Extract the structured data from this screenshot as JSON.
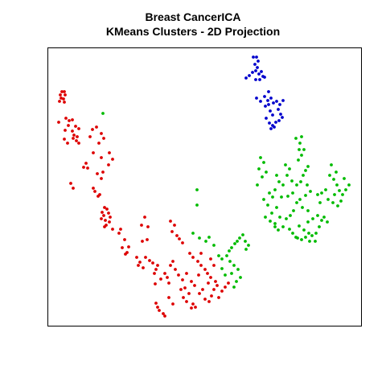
{
  "chart_data": {
    "type": "scatter",
    "title": "Breast CancerICA",
    "subtitle": "KMeans Clusters - 2D Projection",
    "xlabel": "",
    "ylabel": "",
    "grid": false,
    "axes_ticks": false,
    "series": [
      {
        "color": "#dd0000",
        "points": [
          [
            77,
            114
          ],
          [
            80,
            114
          ],
          [
            75,
            118
          ],
          [
            81,
            118
          ],
          [
            76,
            122
          ],
          [
            79,
            123
          ],
          [
            74,
            126
          ],
          [
            80,
            127
          ],
          [
            73,
            152
          ],
          [
            82,
            147
          ],
          [
            86,
            150
          ],
          [
            90,
            149
          ],
          [
            85,
            156
          ],
          [
            94,
            157
          ],
          [
            98,
            160
          ],
          [
            81,
            162
          ],
          [
            90,
            163
          ],
          [
            92,
            168
          ],
          [
            96,
            170
          ],
          [
            91,
            172
          ],
          [
            95,
            175
          ],
          [
            98,
            178
          ],
          [
            80,
            173
          ],
          [
            84,
            178
          ],
          [
            115,
            161
          ],
          [
            120,
            158
          ],
          [
            126,
            166
          ],
          [
            129,
            172
          ],
          [
            123,
            178
          ],
          [
            112,
            170
          ],
          [
            136,
            190
          ],
          [
            140,
            198
          ],
          [
            135,
            205
          ],
          [
            126,
            196
          ],
          [
            116,
            190
          ],
          [
            107,
            203
          ],
          [
            109,
            209
          ],
          [
            104,
            208
          ],
          [
            121,
            216
          ],
          [
            128,
            214
          ],
          [
            126,
            222
          ],
          [
            88,
            228
          ],
          [
            91,
            234
          ],
          [
            116,
            234
          ],
          [
            118,
            238
          ],
          [
            122,
            244
          ],
          [
            124,
            242
          ],
          [
            130,
            258
          ],
          [
            133,
            260
          ],
          [
            127,
            264
          ],
          [
            135,
            265
          ],
          [
            129,
            268
          ],
          [
            137,
            270
          ],
          [
            131,
            274
          ],
          [
            126,
            272
          ],
          [
            136,
            276
          ],
          [
            132,
            280
          ],
          [
            130,
            282
          ],
          [
            140,
            285
          ],
          [
            150,
            285
          ],
          [
            148,
            290
          ],
          [
            155,
            298
          ],
          [
            160,
            307
          ],
          [
            152,
            308
          ],
          [
            158,
            314
          ],
          [
            156,
            316
          ],
          [
            180,
            270
          ],
          [
            176,
            280
          ],
          [
            184,
            282
          ],
          [
            177,
            300
          ],
          [
            183,
            298
          ],
          [
            212,
            275
          ],
          [
            217,
            280
          ],
          [
            214,
            288
          ],
          [
            220,
            293
          ],
          [
            223,
            297
          ],
          [
            227,
            302
          ],
          [
            170,
            320
          ],
          [
            174,
            326
          ],
          [
            172,
            330
          ],
          [
            178,
            333
          ],
          [
            181,
            320
          ],
          [
            186,
            324
          ],
          [
            190,
            327
          ],
          [
            194,
            335
          ],
          [
            196,
            330
          ],
          [
            192,
            340
          ],
          [
            200,
            347
          ],
          [
            205,
            340
          ],
          [
            208,
            345
          ],
          [
            210,
            352
          ],
          [
            212,
            330
          ],
          [
            215,
            325
          ],
          [
            218,
            335
          ],
          [
            222,
            342
          ],
          [
            227,
            348
          ],
          [
            232,
            340
          ],
          [
            238,
            350
          ],
          [
            242,
            355
          ],
          [
            230,
            358
          ],
          [
            235,
            365
          ],
          [
            228,
            370
          ],
          [
            232,
            375
          ],
          [
            240,
            378
          ],
          [
            243,
            382
          ],
          [
            238,
            383
          ],
          [
            248,
            365
          ],
          [
            252,
            360
          ],
          [
            255,
            372
          ],
          [
            260,
            375
          ],
          [
            263,
            368
          ],
          [
            266,
            360
          ],
          [
            270,
            355
          ],
          [
            268,
            350
          ],
          [
            272,
            370
          ],
          [
            276,
            362
          ],
          [
            280,
            357
          ],
          [
            284,
            352
          ],
          [
            262,
            345
          ],
          [
            258,
            340
          ],
          [
            255,
            335
          ],
          [
            250,
            330
          ],
          [
            246,
            325
          ],
          [
            240,
            320
          ],
          [
            236,
            315
          ],
          [
            250,
            315
          ],
          [
            262,
            322
          ],
          [
            266,
            330
          ],
          [
            194,
            377
          ],
          [
            196,
            382
          ],
          [
            198,
            386
          ],
          [
            203,
            390
          ],
          [
            205,
            393
          ],
          [
            193,
            353
          ],
          [
            225,
            360
          ],
          [
            210,
            370
          ],
          [
            215,
            378
          ],
          [
            247,
            342
          ],
          [
            259,
            352
          ]
        ]
      },
      {
        "color": "#00bb00",
        "points": [
          [
            128,
            141
          ],
          [
            245,
            236
          ],
          [
            245,
            255
          ],
          [
            240,
            290
          ],
          [
            248,
            296
          ],
          [
            256,
            300
          ],
          [
            260,
            295
          ],
          [
            266,
            305
          ],
          [
            272,
            318
          ],
          [
            276,
            322
          ],
          [
            282,
            318
          ],
          [
            285,
            312
          ],
          [
            288,
            308
          ],
          [
            292,
            303
          ],
          [
            295,
            300
          ],
          [
            298,
            296
          ],
          [
            302,
            292
          ],
          [
            305,
            300
          ],
          [
            309,
            305
          ],
          [
            306,
            310
          ],
          [
            286,
            325
          ],
          [
            291,
            330
          ],
          [
            288,
            340
          ],
          [
            296,
            335
          ],
          [
            299,
            345
          ],
          [
            294,
            350
          ],
          [
            276,
            334
          ],
          [
            280,
            342
          ],
          [
            291,
            357
          ],
          [
            324,
            196
          ],
          [
            328,
            202
          ],
          [
            322,
            210
          ],
          [
            331,
            214
          ],
          [
            326,
            220
          ],
          [
            320,
            230
          ],
          [
            335,
            240
          ],
          [
            342,
            236
          ],
          [
            339,
            245
          ],
          [
            328,
            248
          ],
          [
            333,
            255
          ],
          [
            344,
            258
          ],
          [
            338,
            265
          ],
          [
            348,
            270
          ],
          [
            342,
            278
          ],
          [
            352,
            282
          ],
          [
            346,
            286
          ],
          [
            336,
            275
          ],
          [
            330,
            270
          ],
          [
            355,
            205
          ],
          [
            360,
            210
          ],
          [
            357,
            218
          ],
          [
            363,
            225
          ],
          [
            369,
            230
          ],
          [
            374,
            226
          ],
          [
            377,
            218
          ],
          [
            380,
            212
          ],
          [
            383,
            207
          ],
          [
            371,
            199
          ],
          [
            375,
            193
          ],
          [
            378,
            186
          ],
          [
            373,
            178
          ],
          [
            368,
            172
          ],
          [
            375,
            170
          ],
          [
            372,
            186
          ],
          [
            382,
            230
          ],
          [
            386,
            238
          ],
          [
            380,
            243
          ],
          [
            373,
            248
          ],
          [
            369,
            252
          ],
          [
            376,
            258
          ],
          [
            383,
            262
          ],
          [
            365,
            262
          ],
          [
            361,
            268
          ],
          [
            356,
            272
          ],
          [
            352,
            230
          ],
          [
            347,
            226
          ],
          [
            344,
            218
          ],
          [
            350,
            245
          ],
          [
            358,
            244
          ],
          [
            364,
            240
          ],
          [
            372,
            281
          ],
          [
            378,
            286
          ],
          [
            384,
            290
          ],
          [
            388,
            293
          ],
          [
            393,
            290
          ],
          [
            397,
            282
          ],
          [
            400,
            274
          ],
          [
            395,
            268
          ],
          [
            389,
            272
          ],
          [
            383,
            276
          ],
          [
            370,
            296
          ],
          [
            375,
            298
          ],
          [
            380,
            295
          ],
          [
            392,
            300
          ],
          [
            410,
            218
          ],
          [
            415,
            223
          ],
          [
            419,
            230
          ],
          [
            422,
            237
          ],
          [
            426,
            242
          ],
          [
            430,
            236
          ],
          [
            434,
            230
          ],
          [
            428,
            222
          ],
          [
            418,
            214
          ],
          [
            412,
            205
          ],
          [
            405,
            236
          ],
          [
            400,
            240
          ],
          [
            395,
            242
          ],
          [
            408,
            248
          ],
          [
            414,
            252
          ],
          [
            420,
            256
          ],
          [
            424,
            250
          ],
          [
            385,
            300
          ],
          [
            360,
            285
          ],
          [
            364,
            290
          ],
          [
            368,
            295
          ],
          [
            342,
            282
          ],
          [
            403,
            270
          ],
          [
            407,
            276
          ],
          [
            398,
            252
          ],
          [
            416,
            242
          ]
        ]
      },
      {
        "color": "#0000cc",
        "points": [
          [
            315,
            71
          ],
          [
            319,
            71
          ],
          [
            321,
            76
          ],
          [
            317,
            80
          ],
          [
            320,
            84
          ],
          [
            318,
            88
          ],
          [
            314,
            90
          ],
          [
            310,
            94
          ],
          [
            306,
            97
          ],
          [
            322,
            92
          ],
          [
            325,
            89
          ],
          [
            327,
            95
          ],
          [
            318,
            99
          ],
          [
            323,
            99
          ],
          [
            329,
            96
          ],
          [
            334,
            114
          ],
          [
            319,
            122
          ],
          [
            324,
            126
          ],
          [
            329,
            120
          ],
          [
            333,
            125
          ],
          [
            337,
            122
          ],
          [
            340,
            128
          ],
          [
            344,
            126
          ],
          [
            348,
            130
          ],
          [
            330,
            132
          ],
          [
            334,
            130
          ],
          [
            336,
            138
          ],
          [
            339,
            143
          ],
          [
            331,
            147
          ],
          [
            335,
            153
          ],
          [
            339,
            156
          ],
          [
            343,
            152
          ],
          [
            347,
            150
          ],
          [
            351,
            146
          ],
          [
            349,
            142
          ],
          [
            337,
            160
          ],
          [
            341,
            158
          ],
          [
            352,
            125
          ],
          [
            346,
            136
          ]
        ]
      }
    ]
  }
}
